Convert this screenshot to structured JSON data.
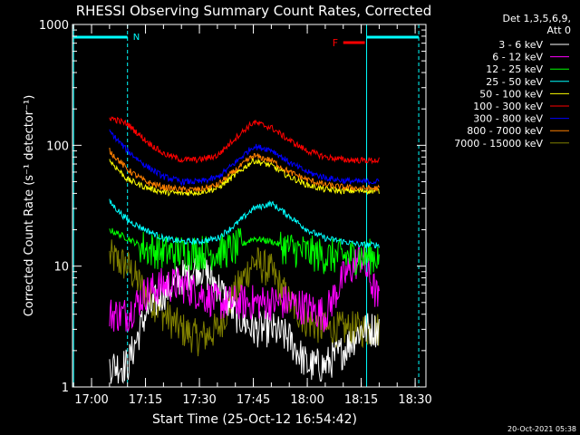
{
  "chart_data": {
    "type": "line",
    "title": "RHESSI Observing Summary Count Rates, Corrected",
    "xlabel": "Start Time (25-Oct-12 16:54:42)",
    "ylabel": "Corrected Count Rate (s⁻¹ detector⁻¹)",
    "x_ticks": [
      "17:00",
      "17:15",
      "17:30",
      "17:45",
      "18:00",
      "18:15",
      "18:30"
    ],
    "y_ticks": [
      "1",
      "10",
      "100",
      "1000"
    ],
    "xlim": [
      "16:54:42",
      "18:33:00"
    ],
    "ylim": [
      1,
      1000
    ],
    "y_scale": "log",
    "legend_header": [
      "Det 1,3,5,6,9,",
      "Att 0"
    ],
    "legend_placement": "right",
    "timestamp": "20-Oct-2021 05:38",
    "annotations": {
      "night_label": "N",
      "flare_label": "F",
      "night_start": "16:55:00",
      "night_end": "17:10:00",
      "day_start": "18:16:30",
      "day_end": "18:31:00",
      "flare_start": "18:10:00",
      "flare_end": "18:16:00"
    },
    "data_start": "17:05:00",
    "data_end": "18:20:00",
    "series": [
      {
        "name": "3 - 6 keV",
        "color": "#ffffff",
        "x": [
          "17:05",
          "17:10",
          "17:15",
          "17:20",
          "17:25",
          "17:30",
          "17:35",
          "17:40",
          "17:45",
          "17:50",
          "17:55",
          "18:00",
          "18:05",
          "18:10",
          "18:15",
          "18:20"
        ],
        "values": [
          1.5,
          1.5,
          4,
          6,
          8,
          10,
          7,
          4,
          3,
          3,
          2.5,
          1.5,
          1.5,
          2,
          3,
          3
        ]
      },
      {
        "name": "6 - 12 keV",
        "color": "#ff00ff",
        "x": [
          "17:05",
          "17:10",
          "17:15",
          "17:20",
          "17:25",
          "17:30",
          "17:35",
          "17:40",
          "17:45",
          "17:50",
          "17:55",
          "18:00",
          "18:05",
          "18:10",
          "18:15",
          "18:20"
        ],
        "values": [
          4,
          4,
          6,
          7,
          7,
          6,
          5,
          5,
          5,
          5,
          5,
          4.5,
          4,
          8,
          12,
          5
        ]
      },
      {
        "name": "12 - 25 keV",
        "color": "#00ff00",
        "x": [
          "17:05",
          "17:10",
          "17:15",
          "17:20",
          "17:25",
          "17:30",
          "17:35",
          "17:40",
          "17:45",
          "17:50",
          "17:55",
          "18:00",
          "18:05",
          "18:10",
          "18:15",
          "18:20"
        ],
        "values": [
          20,
          17,
          14,
          13,
          13,
          13,
          13,
          14,
          17,
          16,
          14,
          13,
          12,
          12,
          12,
          12
        ]
      },
      {
        "name": "25 - 50 keV",
        "color": "#00ffff",
        "x": [
          "17:05",
          "17:10",
          "17:15",
          "17:20",
          "17:25",
          "17:30",
          "17:35",
          "17:40",
          "17:45",
          "17:50",
          "17:55",
          "18:00",
          "18:05",
          "18:10",
          "18:15",
          "18:20"
        ],
        "values": [
          34,
          24,
          20,
          17,
          16,
          16,
          17,
          22,
          30,
          33,
          26,
          20,
          17,
          16,
          15,
          15
        ]
      },
      {
        "name": "50 - 100 keV",
        "color": "#ffff00",
        "x": [
          "17:05",
          "17:10",
          "17:15",
          "17:20",
          "17:25",
          "17:30",
          "17:35",
          "17:40",
          "17:45",
          "17:50",
          "17:55",
          "18:00",
          "18:05",
          "18:10",
          "18:15",
          "18:20"
        ],
        "values": [
          75,
          52,
          45,
          41,
          40,
          41,
          44,
          57,
          75,
          68,
          55,
          47,
          43,
          42,
          42,
          42
        ]
      },
      {
        "name": "100 - 300 keV",
        "color": "#ff0000",
        "x": [
          "17:05",
          "17:10",
          "17:15",
          "17:20",
          "17:25",
          "17:30",
          "17:35",
          "17:40",
          "17:45",
          "17:50",
          "17:55",
          "18:00",
          "18:05",
          "18:10",
          "18:15",
          "18:20"
        ],
        "values": [
          170,
          150,
          110,
          85,
          76,
          76,
          82,
          115,
          155,
          140,
          110,
          90,
          80,
          76,
          75,
          75
        ]
      },
      {
        "name": "300 - 800 keV",
        "color": "#0000ff",
        "x": [
          "17:05",
          "17:10",
          "17:15",
          "17:20",
          "17:25",
          "17:30",
          "17:35",
          "17:40",
          "17:45",
          "17:50",
          "17:55",
          "18:00",
          "18:05",
          "18:10",
          "18:15",
          "18:20"
        ],
        "values": [
          130,
          90,
          68,
          55,
          50,
          50,
          54,
          72,
          98,
          92,
          72,
          60,
          54,
          51,
          50,
          50
        ]
      },
      {
        "name": "800 - 7000 keV",
        "color": "#ff8000",
        "x": [
          "17:05",
          "17:10",
          "17:15",
          "17:20",
          "17:25",
          "17:30",
          "17:35",
          "17:40",
          "17:45",
          "17:50",
          "17:55",
          "18:00",
          "18:05",
          "18:10",
          "18:15",
          "18:20"
        ],
        "values": [
          90,
          63,
          50,
          45,
          43,
          43,
          47,
          62,
          82,
          75,
          60,
          52,
          47,
          45,
          44,
          44
        ]
      },
      {
        "name": "7000 - 15000 keV",
        "color": "#808000",
        "x": [
          "17:05",
          "17:10",
          "17:15",
          "17:20",
          "17:25",
          "17:30",
          "17:35",
          "17:40",
          "17:45",
          "17:50",
          "17:55",
          "18:00",
          "18:05",
          "18:10",
          "18:15",
          "18:20"
        ],
        "values": [
          12,
          10,
          6,
          4,
          3,
          2.5,
          3,
          6,
          11,
          9,
          5,
          3.5,
          3,
          3,
          3,
          3
        ]
      }
    ]
  }
}
